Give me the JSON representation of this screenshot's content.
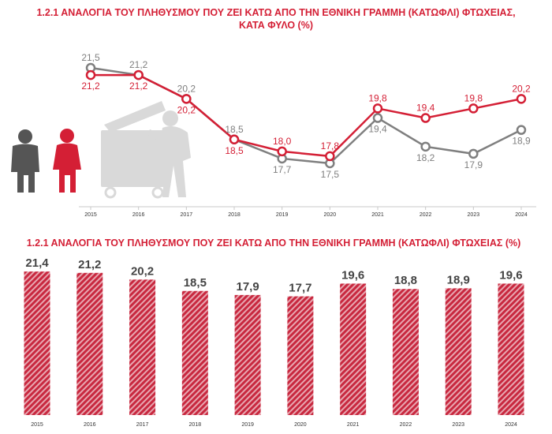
{
  "colors": {
    "accent": "#d41f35",
    "male": "#7f7f7f",
    "female": "#d41f35",
    "bar": "#c8283f",
    "deco": "#d9d9d9",
    "person_male": "#555555"
  },
  "chart1": {
    "title_line1": "1.2.1 ΑΝΑΛΟΓΙΑ ΤΟΥ ΠΛΗΘΥΣΜΟΥ ΠΟΥ ΖΕΙ ΚΑΤΩ ΑΠΟ ΤΗΝ ΕΘΝΙΚΗ ΓΡΑΜΜΗ (ΚΑΤΩΦΛΙ) ΦΤΩΧΕΙΑΣ,",
    "title_line2": "ΚΑΤΑ ΦΥΛΟ (%)"
  },
  "chart2": {
    "title": "1.2.1 ΑΝΑΛΟΓΙΑ ΤΟΥ ΠΛΗΘΥΣΜΟΥ ΠΟΥ ΖΕΙ ΚΑΤΩ ΑΠΟ ΤΗΝ ΕΘΝΙΚΗ ΓΡΑΜΜΗ (ΚΑΤΩΦΛΙ) ΦΤΩΧΕΙΑΣ (%)"
  },
  "chart_data": [
    {
      "type": "line",
      "title": "1.2.1 ΑΝΑΛΟΓΙΑ ΤΟΥ ΠΛΗΘΥΣΜΟΥ ΠΟΥ ΖΕΙ ΚΑΤΩ ΑΠΟ ΤΗΝ ΕΘΝΙΚΗ ΓΡΑΜΜΗ (ΚΑΤΩΦΛΙ) ΦΤΩΧΕΙΑΣ, ΚΑΤΑ ΦΥΛΟ (%)",
      "categories": [
        "2015",
        "2016",
        "2017",
        "2018",
        "2019",
        "2020",
        "2021",
        "2022",
        "2023",
        "2024"
      ],
      "labels_male": [
        "21,5",
        "21,2",
        "20,2",
        "18,5",
        "17,7",
        "17,5",
        "19,4",
        "18,2",
        "17,9",
        "18,9"
      ],
      "labels_female": [
        "21,2",
        "21,2",
        "20,2",
        "18,5",
        "18,0",
        "17,8",
        "19,8",
        "19,4",
        "19,8",
        "20,2"
      ],
      "series": [
        {
          "values": [
            21.5,
            21.2,
            20.2,
            18.5,
            17.7,
            17.5,
            19.4,
            18.2,
            17.9,
            18.9
          ],
          "color": "#7f7f7f",
          "label_position": [
            "above",
            "above",
            "above",
            "above",
            "below",
            "below",
            "below",
            "below",
            "below",
            "below"
          ]
        },
        {
          "values": [
            21.2,
            21.2,
            20.2,
            18.5,
            18.0,
            17.8,
            19.8,
            19.4,
            19.8,
            20.2
          ],
          "color": "#d41f35",
          "label_position": [
            "below",
            "below",
            "below",
            "below",
            "above",
            "above",
            "above",
            "above",
            "above",
            "above"
          ]
        }
      ],
      "grid": false,
      "legend": "none"
    },
    {
      "type": "bar",
      "title": "1.2.1 ΑΝΑΛΟΓΙΑ ΤΟΥ ΠΛΗΘΥΣΜΟΥ ΠΟΥ ΖΕΙ ΚΑΤΩ ΑΠΟ ΤΗΝ ΕΘΝΙΚΗ ΓΡΑΜΜΗ (ΚΑΤΩΦΛΙ) ΦΤΩΧΕΙΑΣ (%)",
      "categories": [
        "2015",
        "2016",
        "2017",
        "2018",
        "2019",
        "2020",
        "2021",
        "2022",
        "2023",
        "2024"
      ],
      "values": [
        21.4,
        21.2,
        20.2,
        18.5,
        17.9,
        17.7,
        19.6,
        18.8,
        18.9,
        19.6
      ],
      "labels": [
        "21,4",
        "21,2",
        "20,2",
        "18,5",
        "17,9",
        "17,7",
        "19,6",
        "18,8",
        "18,9",
        "19,6"
      ],
      "fill": "diagonal-hatch",
      "grid": false
    }
  ]
}
